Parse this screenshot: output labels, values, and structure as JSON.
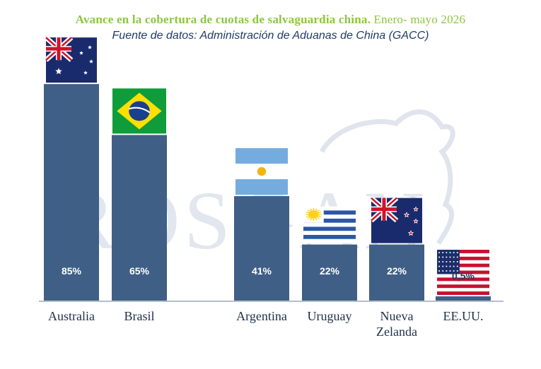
{
  "title_bold": "Avance en la cobertura de cuotas de salvaguardia china.",
  "title_period": "Enero- mayo 2026",
  "subtitle": "Fuente de datos: Administración de Aduanas de China (GACC)",
  "watermark": "ROSGAN",
  "colors": {
    "bar": "#3f5f86",
    "title": "#8cc63f",
    "subtitle": "#1f3b63",
    "label_inside": "#ffffff",
    "label_outside": "#1f3b63"
  },
  "chart_data": {
    "type": "bar",
    "categories": [
      "Australia",
      "Brasil",
      "Argentina",
      "Uruguay",
      "Nueva Zelanda",
      "EE.UU."
    ],
    "category_lines": [
      [
        "Australia"
      ],
      [
        "Brasil"
      ],
      [
        "Argentina"
      ],
      [
        "Uruguay"
      ],
      [
        "Nueva",
        "Zelanda"
      ],
      [
        "EE.UU."
      ]
    ],
    "values": [
      85,
      65,
      41,
      22,
      22,
      0.5
    ],
    "value_labels": [
      "85%",
      "65%",
      "41%",
      "22%",
      "22%",
      "0,5%"
    ],
    "flags": [
      "flag-australia",
      "flag-brazil",
      "flag-argentina",
      "flag-uruguay",
      "flag-new-zealand",
      "flag-usa"
    ],
    "ylim": [
      0,
      100
    ],
    "grid": false,
    "legend": "none"
  }
}
